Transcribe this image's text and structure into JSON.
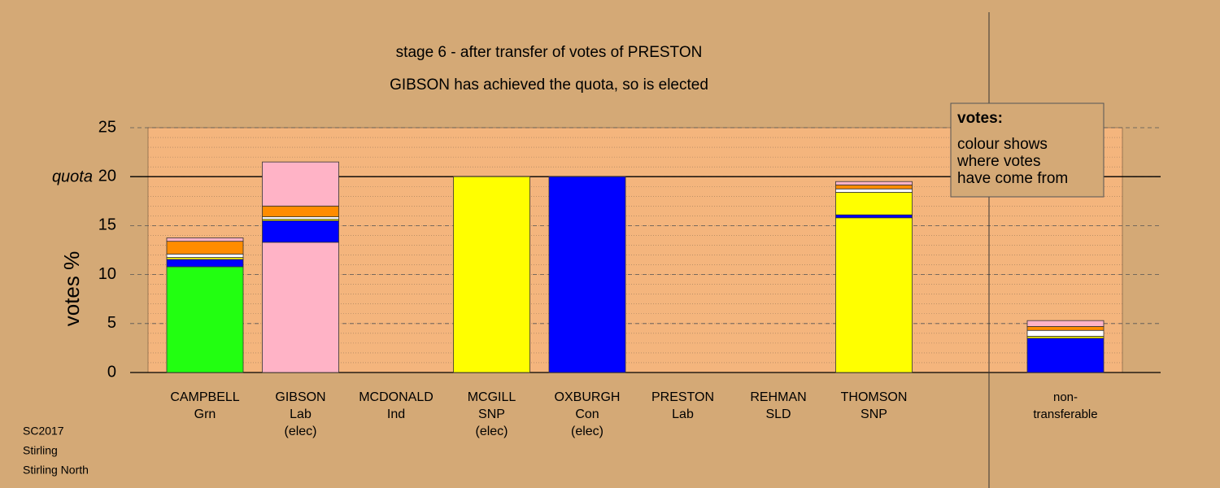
{
  "chart_data": {
    "type": "stacked_bar",
    "title": "stage 6 - after transfer of votes of PRESTON",
    "subtitle": "GIBSON has achieved the quota, so is elected",
    "y_label": "votes %",
    "categories": [
      [
        "CAMPBELL",
        "Grn"
      ],
      [
        "GIBSON",
        "Lab",
        "(elec)"
      ],
      [
        "MCDONALD",
        "Ind"
      ],
      [
        "MCGILL",
        "SNP",
        "(elec)"
      ],
      [
        "OXBURGH",
        "Con",
        "(elec)"
      ],
      [
        "PRESTON",
        "Lab"
      ],
      [
        "REHMAN",
        "SLD"
      ],
      [
        "THOMSON",
        "SNP"
      ],
      [
        "non-",
        "transferable"
      ]
    ],
    "series": [
      {
        "colors": [
          "#22ff11",
          "#ffb3c6",
          "#ff8c00",
          "#ffff00",
          "#0000ff",
          "#ffb3c6",
          "#ffffff",
          "#ffff00",
          null
        ],
        "values": [
          10.8,
          13.3,
          0,
          20,
          20,
          0,
          0,
          15.8,
          0
        ]
      },
      {
        "color": "#0000ff",
        "values": [
          0.75,
          2.2,
          0,
          0,
          0,
          0,
          0,
          0.3,
          3.5
        ]
      },
      {
        "color": "#ffff00",
        "values": [
          0.2,
          0.15,
          0,
          0,
          0,
          0,
          0,
          2.3,
          0.2
        ]
      },
      {
        "color": "#ffffff",
        "values": [
          0.35,
          0.25,
          0,
          0,
          0,
          0,
          0,
          0.35,
          0.6
        ]
      },
      {
        "color": "#ff8c00",
        "values": [
          1.3,
          1.1,
          0,
          0,
          0,
          0,
          0,
          0.4,
          0.4
        ]
      },
      {
        "color": "#ffb3c6",
        "values": [
          0.35,
          4.5,
          0,
          0,
          0,
          0,
          0,
          0.35,
          0.6
        ]
      }
    ],
    "ylim": [
      0,
      25
    ],
    "yticks": [
      0,
      5,
      10,
      15,
      20,
      25
    ],
    "minor_grid_step": 1,
    "quota": {
      "value": 20,
      "label": "quota"
    },
    "legend": {
      "heading": "votes:",
      "lines": [
        "colour shows",
        "where votes",
        "have come from"
      ]
    },
    "footer": [
      "SC2017",
      "Stirling",
      "Stirling North"
    ]
  }
}
